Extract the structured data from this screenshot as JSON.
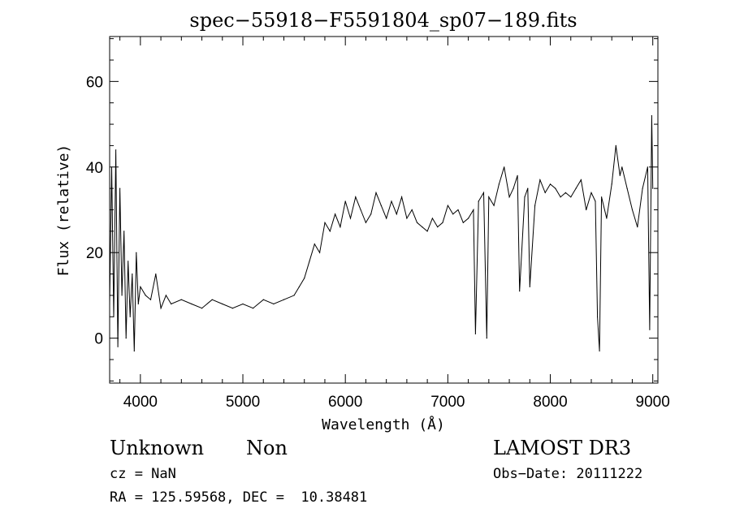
{
  "chart_data": {
    "type": "line",
    "title": "spec−55918−F5591804_sp07−189.fits",
    "xlabel": "Wavelength (Å)",
    "ylabel": "Flux (relative)",
    "xlim": [
      3700,
      9050
    ],
    "ylim": [
      -10.5,
      70.5
    ],
    "x_ticks": [
      4000,
      5000,
      6000,
      7000,
      8000,
      9000
    ],
    "y_ticks": [
      0,
      20,
      40,
      60
    ],
    "x_minor_step": 200,
    "y_minor_step": 5,
    "grid": false,
    "line_color": "#000000",
    "series": [
      {
        "x": [
          3700,
          3720,
          3740,
          3760,
          3780,
          3800,
          3820,
          3840,
          3860,
          3880,
          3900,
          3920,
          3940,
          3960,
          3980,
          4000,
          4050,
          4100,
          4150,
          4200,
          4250,
          4300,
          4400,
          4500,
          4600,
          4700,
          4800,
          4900,
          5000,
          5100,
          5200,
          5300,
          5400,
          5500,
          5550,
          5600,
          5650,
          5700,
          5750,
          5800,
          5850,
          5900,
          5950,
          6000,
          6050,
          6100,
          6150,
          6200,
          6250,
          6300,
          6350,
          6400,
          6450,
          6500,
          6550,
          6600,
          6650,
          6700,
          6750,
          6800,
          6850,
          6900,
          6950,
          7000,
          7050,
          7100,
          7150,
          7200,
          7250,
          7270,
          7300,
          7350,
          7380,
          7400,
          7450,
          7500,
          7550,
          7600,
          7640,
          7680,
          7700,
          7750,
          7780,
          7800,
          7850,
          7900,
          7950,
          8000,
          8050,
          8100,
          8150,
          8200,
          8250,
          8300,
          8350,
          8400,
          8440,
          8460,
          8480,
          8500,
          8550,
          8600,
          8640,
          8680,
          8700,
          8750,
          8800,
          8850,
          8900,
          8950,
          8970,
          8990,
          9000
        ],
        "y": [
          8,
          40,
          5,
          44,
          -2,
          35,
          10,
          25,
          0,
          18,
          5,
          15,
          -3,
          20,
          8,
          12,
          10,
          9,
          15,
          7,
          10,
          8,
          9,
          8,
          7,
          9,
          8,
          7,
          8,
          7,
          9,
          8,
          9,
          10,
          12,
          14,
          18,
          22,
          20,
          27,
          25,
          29,
          26,
          32,
          28,
          33,
          30,
          27,
          29,
          34,
          31,
          28,
          32,
          29,
          33,
          28,
          30,
          27,
          26,
          25,
          28,
          26,
          27,
          31,
          29,
          30,
          27,
          28,
          30,
          1,
          32,
          34,
          0,
          33,
          31,
          36,
          40,
          33,
          35,
          38,
          11,
          33,
          35,
          12,
          31,
          37,
          34,
          36,
          35,
          33,
          34,
          33,
          35,
          37,
          30,
          34,
          32,
          5,
          -3,
          33,
          28,
          36,
          45,
          38,
          40,
          35,
          30,
          26,
          35,
          40,
          2,
          52,
          35
        ]
      }
    ]
  },
  "info": {
    "class_label": "Unknown",
    "subclass_label": "Non",
    "survey": "LAMOST DR3",
    "cz_line": "cz = NaN",
    "obs_date_line": "Obs−Date: 20111222",
    "radec_line": "RA = 125.59568, DEC =  10.38481"
  }
}
